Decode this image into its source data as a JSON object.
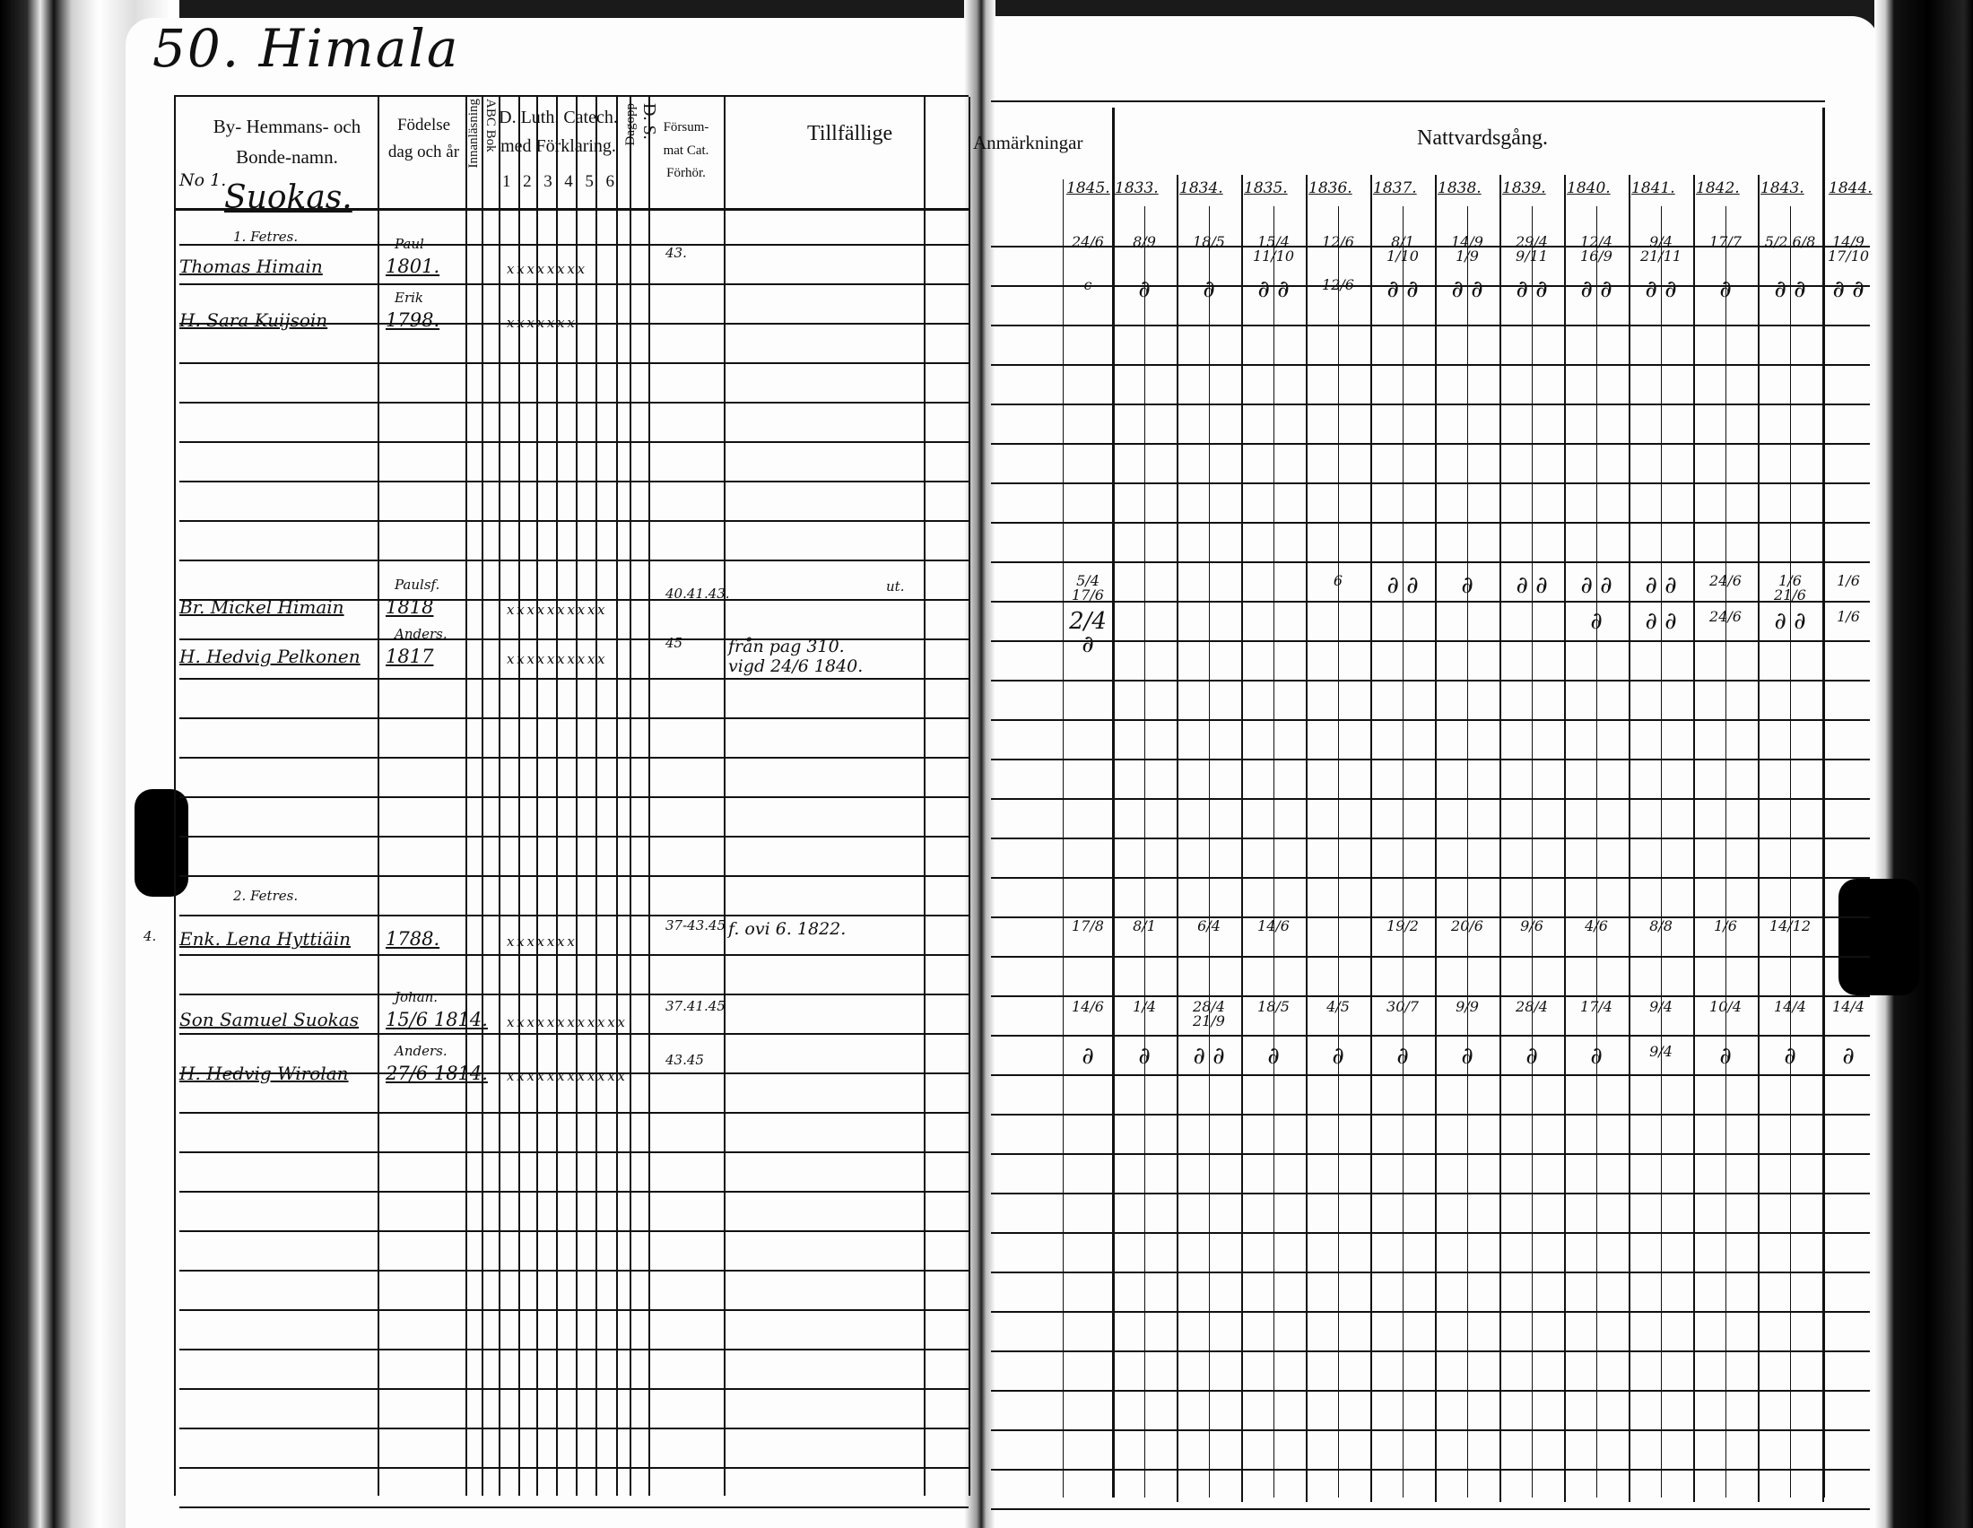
{
  "left_page": {
    "title": "50. Himala",
    "headers": {
      "name": "By- Hemmans- och Bonde-namn.",
      "birth": "Födelse dag och år",
      "innanlasning": "Innanläsning",
      "abc": "ABC Bok",
      "catechism": "D. Luth. Catech. med Förklaring.",
      "catechism_cols": [
        "1",
        "2",
        "3",
        "4",
        "5",
        "6"
      ],
      "ds": "D. S.",
      "dagopp": "Dagopp",
      "forsummat": "Försum- mat Cat. Förhör.",
      "tillfallige": "Tillfällige"
    },
    "farm_no": "No 1.",
    "farm_name": "Suokas.",
    "entries": [
      {
        "heading": "1. Fetres."
      },
      {
        "name": "Thomas Himain",
        "birth_note": "Paul",
        "birth": "1801.",
        "marks": "x x x x x x x x",
        "forsummat": "43."
      },
      {
        "name": "H. Sara Kuijsoin",
        "birth_note": "Erik",
        "birth": "1798.",
        "marks": "x x x x x x x"
      },
      {
        "name": "Br. Mickel Himain",
        "birth_note": "Paulsf.",
        "birth": "1818",
        "marks": "x x  x x x x x x x  x",
        "forsummat": "40.41.43.",
        "remark": "ut."
      },
      {
        "name": "H. Hedvig Pelkonen",
        "birth_note": "Anders.",
        "birth": "1817",
        "marks": "x x x x x x x x x x",
        "forsummat": "45",
        "tillfallige": "från pag 310. vigd 24/6 1840."
      },
      {
        "heading": "2. Fetres."
      },
      {
        "name": "Enk. Lena Hyttiäin",
        "birth": "1788.",
        "marks": "x x x x x x x",
        "forsummat": "37-43.45",
        "tillfallige": "f. ovi 6. 1822.",
        "side": "4."
      },
      {
        "name": "Son Samuel Suokas",
        "birth_note": "Johan.",
        "birth": "15/6 1814.",
        "marks": "x x x x x x x x x x x x",
        "forsummat": "37.41.45"
      },
      {
        "name": "H. Hedvig Wirolan",
        "birth_note": "Anders.",
        "birth": "27/6 1814.",
        "marks": "x x x x x x x x x x x x",
        "forsummat": "43.45"
      }
    ]
  },
  "right_page": {
    "anmarkningar": "Anmärkningar",
    "nattvardsgang": "Nattvardsgång.",
    "years": [
      "1845.",
      "1833.",
      "1834.",
      "1835.",
      "1836.",
      "1837.",
      "1838.",
      "1839.",
      "1840.",
      "1841.",
      "1842.",
      "1843.",
      "1844."
    ],
    "rows": [
      {
        "marks": [
          "24/6",
          "8/9",
          "18/5",
          "15/4 11/10",
          "12/6",
          "8/1 1/10",
          "14/9 1/9",
          "29/4 9/11",
          "12/4 16/9",
          "9/4 21/11",
          "17/7",
          "5/2 6/8",
          "14/9 17/10"
        ]
      },
      {
        "marks": [
          "c",
          "∂",
          "∂",
          "∂ ∂",
          "12/6",
          "∂ ∂",
          "∂ ∂",
          "∂ ∂",
          "∂ ∂",
          "∂ ∂",
          "∂",
          "∂ ∂",
          "∂ ∂"
        ]
      },
      {
        "marks": [
          "5/4 17/6",
          "",
          "",
          "",
          "6",
          "∂ ∂",
          "∂",
          "∂ ∂",
          "∂ ∂",
          "∂ ∂",
          "24/6",
          "1/6 21/6",
          "1/6"
        ]
      },
      {
        "marks": [
          "2/4 ∂",
          "",
          "",
          "",
          "",
          "",
          "",
          "",
          "∂",
          "∂ ∂",
          "24/6",
          "∂ ∂",
          "1/6"
        ]
      },
      {
        "marks": [
          "17/8",
          "8/1",
          "6/4",
          "14/6",
          "",
          "19/2",
          "20/6",
          "9/6",
          "4/6",
          "8/8",
          "1/6",
          "14/12",
          ""
        ]
      },
      {
        "marks": [
          "14/6",
          "1/4",
          "28/4 21/9",
          "18/5",
          "4/5",
          "30/7",
          "9/9",
          "28/4",
          "17/4",
          "9/4",
          "10/4",
          "14/4",
          "14/4"
        ]
      },
      {
        "marks": [
          "∂",
          "∂",
          "∂ ∂",
          "∂",
          "∂",
          "∂",
          "∂",
          "∂",
          "∂",
          "9/4",
          "∂",
          "∂",
          "∂"
        ]
      }
    ]
  }
}
